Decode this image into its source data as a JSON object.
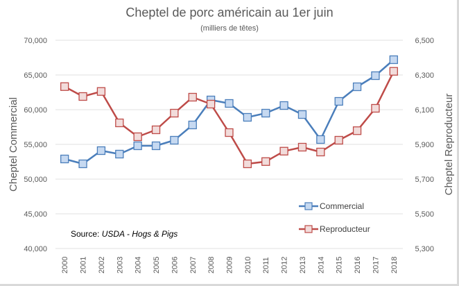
{
  "chart_data": {
    "type": "line",
    "title": "Cheptel de porc américain au 1er juin",
    "subtitle": "(milliers de têtes)",
    "xlabel": "",
    "ylabel_left": "Cheptel Commercial",
    "ylabel_right": "Cheptel Reproducteur",
    "categories": [
      "2000",
      "2001",
      "2002",
      "2003",
      "2004",
      "2005",
      "2006",
      "2007",
      "2008",
      "2009",
      "2010",
      "2011",
      "2012",
      "2013",
      "2014",
      "2015",
      "2016",
      "2017",
      "2018"
    ],
    "y_left": {
      "range": [
        40000,
        70000
      ],
      "ticks": [
        "40,000",
        "45,000",
        "50,000",
        "55,000",
        "60,000",
        "65,000",
        "70,000"
      ],
      "tick_values": [
        40000,
        45000,
        50000,
        55000,
        60000,
        65000,
        70000
      ]
    },
    "y_right": {
      "range": [
        5300,
        6500
      ],
      "ticks": [
        "5,300",
        "5,500",
        "5,700",
        "5,900",
        "6,100",
        "6,300",
        "6,500"
      ],
      "tick_values": [
        5300,
        5500,
        5700,
        5900,
        6100,
        6300,
        6500
      ]
    },
    "grid": true,
    "series": [
      {
        "name": "Commercial",
        "axis": "left",
        "color": "#4a7ebb",
        "fill": "#c6d9f1",
        "values": [
          52900,
          52200,
          54100,
          53600,
          54800,
          54800,
          55600,
          57800,
          61400,
          60900,
          58900,
          59500,
          60600,
          59300,
          55700,
          61200,
          63300,
          64900,
          67200
        ]
      },
      {
        "name": "Reproducteur",
        "axis": "right",
        "color": "#be4b48",
        "fill": "#f2dcdb",
        "values": [
          6233,
          6176,
          6205,
          6024,
          5944,
          5984,
          6080,
          6172,
          6132,
          5968,
          5788,
          5801,
          5861,
          5884,
          5856,
          5924,
          5979,
          6108,
          6321
        ]
      }
    ],
    "legend": {
      "placement": "bottom-right",
      "entries": [
        "Commercial",
        "Reproducteur"
      ]
    },
    "annotations": [
      {
        "text_plain": "Source: ",
        "text_italic": "USDA - Hogs & Pigs"
      }
    ]
  }
}
